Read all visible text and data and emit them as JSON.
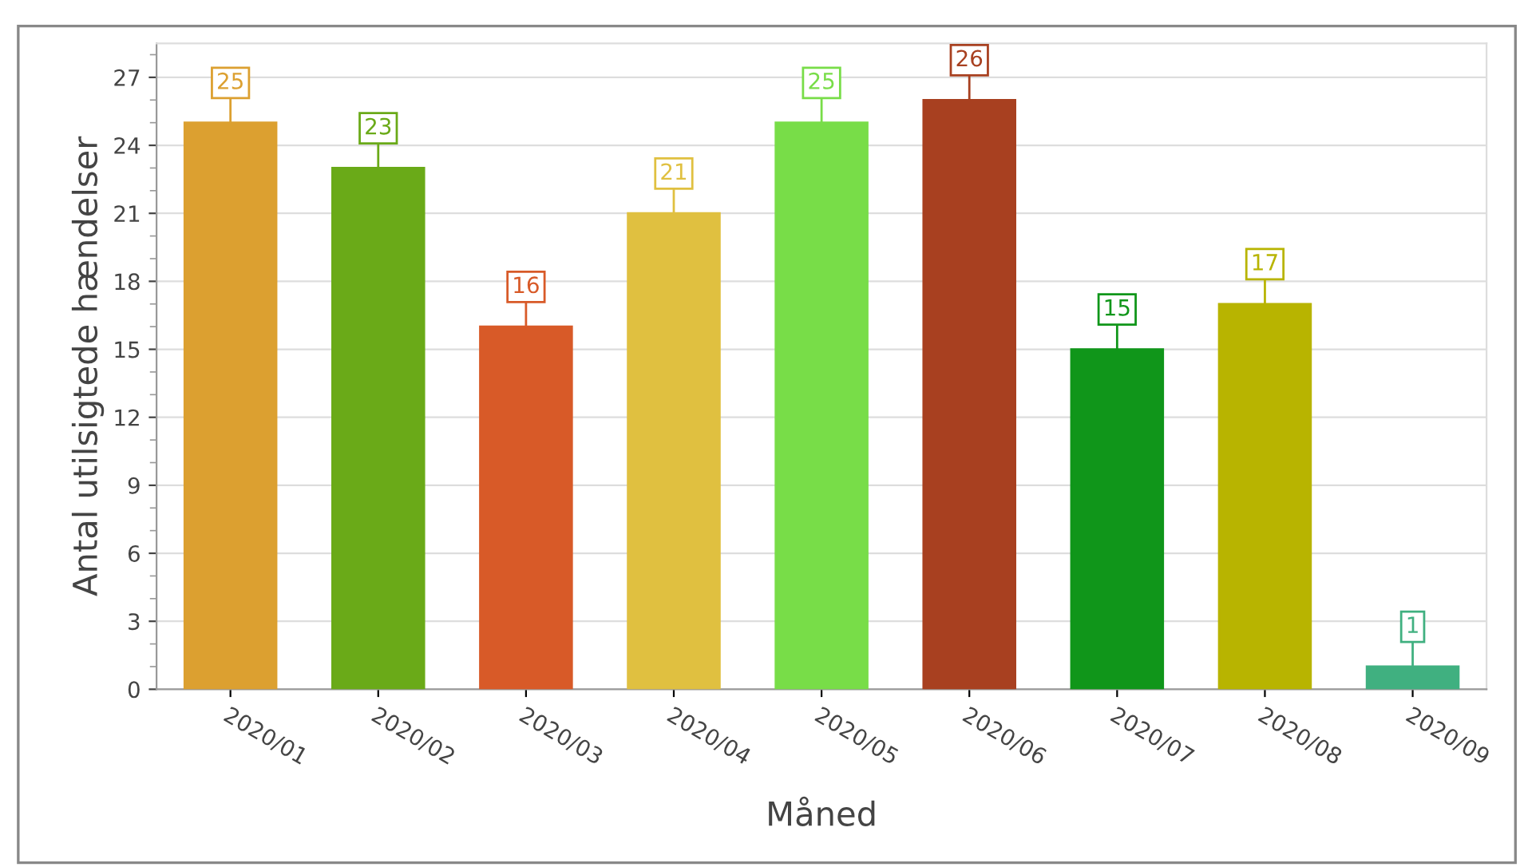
{
  "chart_data": {
    "type": "bar",
    "xlabel": "Måned",
    "ylabel": "Antal utilsigtede hændelser",
    "categories": [
      "2020/01",
      "2020/02",
      "2020/03",
      "2020/04",
      "2020/05",
      "2020/06",
      "2020/07",
      "2020/08",
      "2020/09"
    ],
    "values": [
      25,
      23,
      16,
      21,
      25,
      26,
      15,
      17,
      1
    ],
    "colors": [
      "#dca030",
      "#6aaa18",
      "#d85a28",
      "#e0c040",
      "#78dd48",
      "#a84020",
      "#10961a",
      "#b8b400",
      "#40b080"
    ],
    "ylim": [
      0,
      28.5
    ],
    "yticks": [
      0,
      3,
      6,
      9,
      12,
      15,
      18,
      21,
      24,
      27
    ],
    "grid": "y",
    "legend": false,
    "data_labels": true
  }
}
